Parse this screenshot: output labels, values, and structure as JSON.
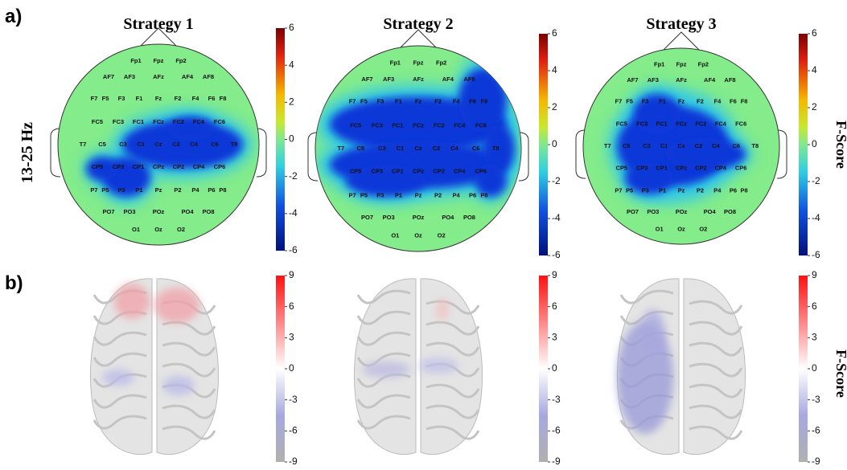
{
  "panel_a": {
    "label": "a)",
    "row_label": "13-25 Hz",
    "titles": [
      "Strategy 1",
      "Strategy 2",
      "Strategy 3"
    ],
    "electrodes": [
      "Fp1",
      "Fpz",
      "Fp2",
      "AF7",
      "AF3",
      "AFz",
      "AF4",
      "AF8",
      "F7",
      "F5",
      "F3",
      "F1",
      "Fz",
      "F2",
      "F4",
      "F6",
      "F8",
      "FC5",
      "FC3",
      "FC1",
      "FCz",
      "FC2",
      "FC4",
      "FC6",
      "T7",
      "C5",
      "C3",
      "C1",
      "Cz",
      "C2",
      "C4",
      "C6",
      "T8",
      "CP5",
      "CP3",
      "CP1",
      "CPz",
      "CP2",
      "CP4",
      "CP6",
      "P7",
      "P5",
      "P3",
      "P1",
      "Pz",
      "P2",
      "P4",
      "P6",
      "P8",
      "PO7",
      "PO3",
      "POz",
      "PO4",
      "PO8",
      "O1",
      "Oz",
      "O2"
    ],
    "colorbar_ticks": [
      6,
      4,
      2,
      0,
      -2,
      -4,
      -6
    ],
    "colorbar_label": "F-Score"
  },
  "panel_b": {
    "label": "b)",
    "colorbar_ticks": [
      9,
      6,
      3,
      0,
      -3,
      -6,
      -9
    ],
    "colorbar_label": "F-Score"
  }
}
